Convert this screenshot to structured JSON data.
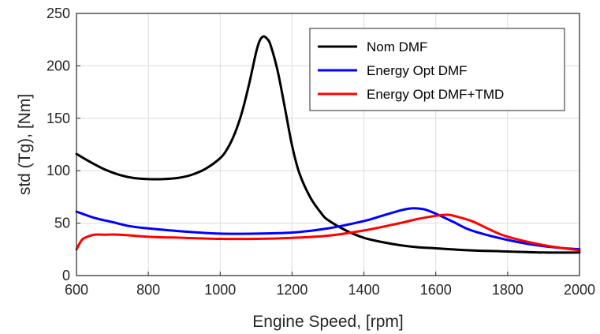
{
  "chart_data": {
    "type": "line",
    "title": "",
    "xlabel": "Engine Speed, [rpm]",
    "ylabel": "std (Tg), [Nm]",
    "xlim": [
      600,
      2000
    ],
    "ylim": [
      0,
      250
    ],
    "xticks": [
      600,
      800,
      1000,
      1200,
      1400,
      1600,
      1800,
      2000
    ],
    "yticks": [
      0,
      50,
      100,
      150,
      200,
      250
    ],
    "grid": true,
    "legend_position": "top-right",
    "series": [
      {
        "name": "Nom DMF",
        "color": "#000000",
        "x": [
          600,
          640,
          680,
          720,
          760,
          800,
          840,
          880,
          920,
          960,
          1000,
          1020,
          1040,
          1060,
          1080,
          1100,
          1110,
          1120,
          1130,
          1140,
          1160,
          1180,
          1200,
          1220,
          1250,
          1280,
          1300,
          1350,
          1400,
          1450,
          1500,
          1550,
          1600,
          1700,
          1800,
          1900,
          2000
        ],
        "y": [
          116,
          108,
          101,
          96,
          93,
          92,
          92,
          93,
          96,
          102,
          112,
          121,
          135,
          155,
          182,
          213,
          224,
          228,
          226,
          220,
          195,
          160,
          124,
          98,
          75,
          60,
          53,
          43,
          36,
          32,
          29,
          27,
          26,
          24,
          23,
          22,
          22
        ]
      },
      {
        "name": "Energy Opt DMF",
        "color": "#0000ff",
        "x": [
          600,
          650,
          700,
          750,
          800,
          900,
          1000,
          1100,
          1200,
          1300,
          1400,
          1450,
          1500,
          1530,
          1550,
          1570,
          1600,
          1650,
          1700,
          1800,
          1900,
          2000
        ],
        "y": [
          61,
          55,
          51,
          47,
          45,
          42,
          40,
          40,
          41,
          45,
          52,
          57,
          62,
          64,
          64,
          63,
          59,
          51,
          43,
          34,
          28,
          25
        ]
      },
      {
        "name": "Energy Opt DMF+TMD",
        "color": "#ff0000",
        "x": [
          600,
          615,
          630,
          650,
          680,
          720,
          800,
          900,
          1000,
          1100,
          1200,
          1300,
          1400,
          1500,
          1550,
          1600,
          1630,
          1650,
          1700,
          1750,
          1800,
          1900,
          2000
        ],
        "y": [
          25,
          34,
          37,
          39,
          39,
          39,
          37,
          36,
          35,
          35,
          36,
          38,
          43,
          50,
          54,
          57,
          58,
          57,
          52,
          44,
          37,
          29,
          24
        ]
      }
    ]
  }
}
